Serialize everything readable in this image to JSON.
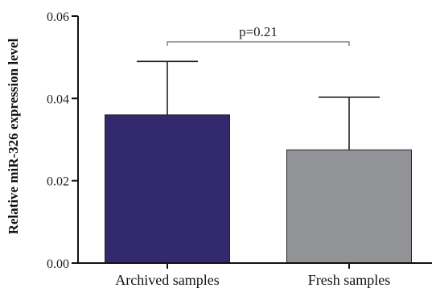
{
  "chart_data": {
    "type": "bar",
    "title": "",
    "xlabel": "",
    "ylabel": "Relative miR-326 expression level",
    "categories": [
      "Archived samples",
      "Fresh samples"
    ],
    "values": [
      0.036,
      0.0275
    ],
    "error_upper": [
      0.049,
      0.0403
    ],
    "colors": [
      "#332a6e",
      "#929396"
    ],
    "ylim": [
      0,
      0.06
    ],
    "yticks": [
      0,
      0.02,
      0.04,
      0.06
    ],
    "ytick_labels": [
      "0.00",
      "0.02",
      "0.04",
      "0.06"
    ],
    "annotation": {
      "text": "p=0.21",
      "between": [
        "Archived samples",
        "Fresh samples"
      ]
    },
    "grid": false,
    "legend": "none"
  }
}
